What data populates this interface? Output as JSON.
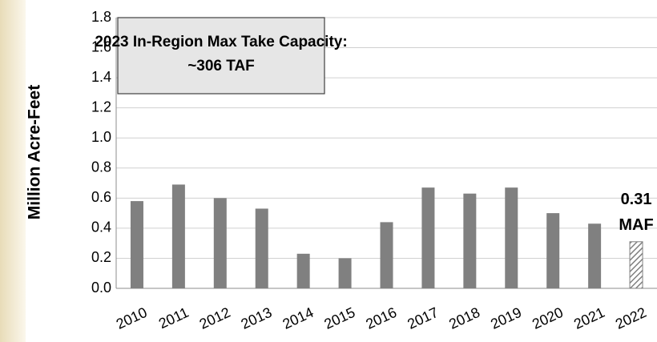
{
  "chart_data": {
    "type": "bar",
    "ylabel": "Million Acre-Feet",
    "annotation": [
      "2023 In-Region Max Take Capacity:",
      "~306 TAF"
    ],
    "categories": [
      "2010",
      "2011",
      "2012",
      "2013",
      "2014",
      "2015",
      "2016",
      "2017",
      "2018",
      "2019",
      "2020",
      "2021",
      "2022"
    ],
    "values": [
      0.58,
      0.69,
      0.6,
      0.53,
      0.23,
      0.2,
      0.44,
      0.67,
      0.63,
      0.67,
      0.5,
      0.43,
      0.31
    ],
    "value_labels": [
      null,
      null,
      null,
      null,
      null,
      null,
      null,
      null,
      null,
      null,
      null,
      null,
      "0.31"
    ],
    "value_label_unit": "MAF",
    "color": "#808080",
    "hatched": [
      false,
      false,
      false,
      false,
      false,
      false,
      false,
      false,
      false,
      false,
      false,
      false,
      true
    ],
    "ylim": [
      0,
      1.8
    ],
    "yticks": [
      {
        "value": 0,
        "label": "0.0"
      },
      0.2,
      0.4,
      0.6,
      0.8,
      {
        "value": 1,
        "label": "1.0"
      },
      1.2,
      1.4,
      1.6,
      1.8
    ],
    "grid": true
  }
}
